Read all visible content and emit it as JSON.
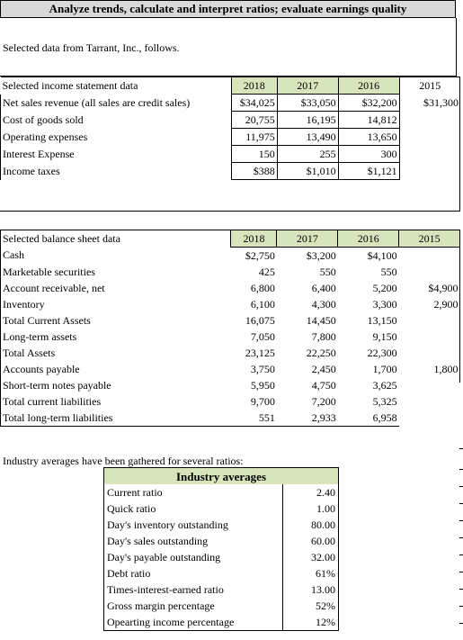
{
  "header": {
    "title": "Analyze trends, calculate and interpret ratios; evaluate earnings quality"
  },
  "intro": {
    "text": "Selected data from Tarrant, Inc., follows."
  },
  "income": {
    "section_label": "Selected income statement data",
    "years": [
      "2018",
      "2017",
      "2016",
      "2015"
    ],
    "rows": [
      {
        "label": "Net sales revenue (all sales are credit sales)",
        "values": [
          "$34,025",
          "$33,050",
          "$32,200",
          "$31,300"
        ]
      },
      {
        "label": "Cost of goods sold",
        "values": [
          "20,755",
          "16,195",
          "14,812",
          ""
        ]
      },
      {
        "label": "Operating expenses",
        "values": [
          "11,975",
          "13,490",
          "13,650",
          ""
        ]
      },
      {
        "label": "Interest Expense",
        "values": [
          "150",
          "255",
          "300",
          ""
        ]
      },
      {
        "label": "Income taxes",
        "values": [
          "$388",
          "$1,010",
          "$1,121",
          ""
        ]
      }
    ]
  },
  "balance": {
    "section_label": "Selected balance sheet data",
    "years": [
      "2018",
      "2017",
      "2016",
      "2015"
    ],
    "rows": [
      {
        "label": "Cash",
        "values": [
          "$2,750",
          "$3,200",
          "$4,100",
          ""
        ]
      },
      {
        "label": "Marketable securities",
        "values": [
          "425",
          "550",
          "550",
          ""
        ]
      },
      {
        "label": "Account receivable, net",
        "values": [
          "6,800",
          "6,400",
          "5,200",
          "$4,900"
        ]
      },
      {
        "label": "Inventory",
        "values": [
          "6,100",
          "4,300",
          "3,300",
          "2,900"
        ]
      },
      {
        "label": "Total Current Assets",
        "values": [
          "16,075",
          "14,450",
          "13,150",
          ""
        ]
      },
      {
        "label": "Long-term assets",
        "values": [
          "7,050",
          "7,800",
          "9,150",
          ""
        ]
      },
      {
        "label": "Total Assets",
        "values": [
          "23,125",
          "22,250",
          "22,300",
          ""
        ]
      },
      {
        "label": "Accounts payable",
        "values": [
          "3,750",
          "2,450",
          "1,700",
          "1,800"
        ]
      },
      {
        "label": "Short-term notes payable",
        "values": [
          "5,950",
          "4,750",
          "3,625",
          ""
        ]
      },
      {
        "label": "Total current liabilities",
        "values": [
          "9,700",
          "7,200",
          "5,325",
          ""
        ]
      },
      {
        "label": "Total long-term liabilities",
        "values": [
          "551",
          "2,933",
          "6,958",
          ""
        ]
      }
    ]
  },
  "industry": {
    "intro": "Industry averages have been gathered for several ratios:",
    "title": "Industry averages",
    "rows": [
      {
        "label": "Current ratio",
        "value": "2.40"
      },
      {
        "label": "Quick ratio",
        "value": "1.00"
      },
      {
        "label": "Day's inventory outstanding",
        "value": "80.00"
      },
      {
        "label": "Day's sales outstanding",
        "value": "60.00"
      },
      {
        "label": "Day's payable outstanding",
        "value": "32.00"
      },
      {
        "label": "Debt ratio",
        "value": "61%"
      },
      {
        "label": "Times-interest-earned ratio",
        "value": "13.00"
      },
      {
        "label": "Gross margin percentage",
        "value": "52%"
      },
      {
        "label": "Opearting income percentage",
        "value": "12%"
      }
    ]
  },
  "colors": {
    "header_bg": "#d9d9d9",
    "year_bg": "#d8e4bc"
  }
}
